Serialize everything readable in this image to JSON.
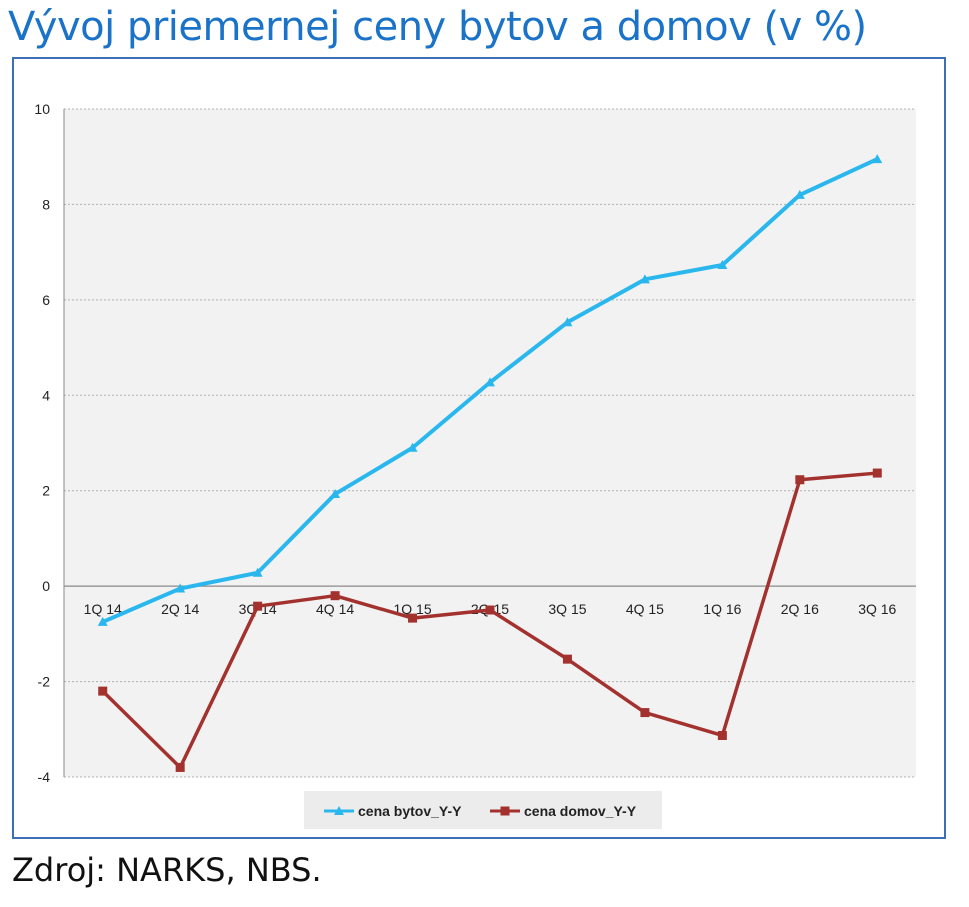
{
  "title": "Vývoj priemernej ceny bytov a domov (v %)",
  "source": "Zdroj: NARKS, NBS.",
  "colors": {
    "title": "#1a73c9",
    "frame": "#3d6fb6",
    "series_bytov": "#2ab7ee",
    "series_domov": "#a3322f",
    "grid": "#b0b0b0",
    "plot_bg": "#f2f2f2"
  },
  "chart_data": {
    "type": "line",
    "categories": [
      "1Q 14",
      "2Q 14",
      "3Q 14",
      "4Q 14",
      "1Q 15",
      "2Q 15",
      "3Q 15",
      "4Q 15",
      "1Q 16",
      "2Q 16",
      "3Q 16"
    ],
    "series": [
      {
        "name": "cena bytov_Y-Y",
        "marker": "triangle",
        "values": [
          -0.75,
          -0.05,
          0.28,
          1.93,
          2.9,
          4.27,
          5.53,
          6.43,
          6.73,
          8.2,
          8.95
        ]
      },
      {
        "name": "cena domov_Y-Y",
        "marker": "square",
        "values": [
          -2.2,
          -3.8,
          -0.42,
          -0.2,
          -0.67,
          -0.5,
          -1.53,
          -2.65,
          -3.13,
          2.23,
          2.37
        ]
      }
    ],
    "ylim": [
      -4,
      10
    ],
    "yticks": [
      -4,
      -2,
      0,
      2,
      4,
      6,
      8,
      10
    ],
    "grid": true,
    "legend": "bottom"
  }
}
